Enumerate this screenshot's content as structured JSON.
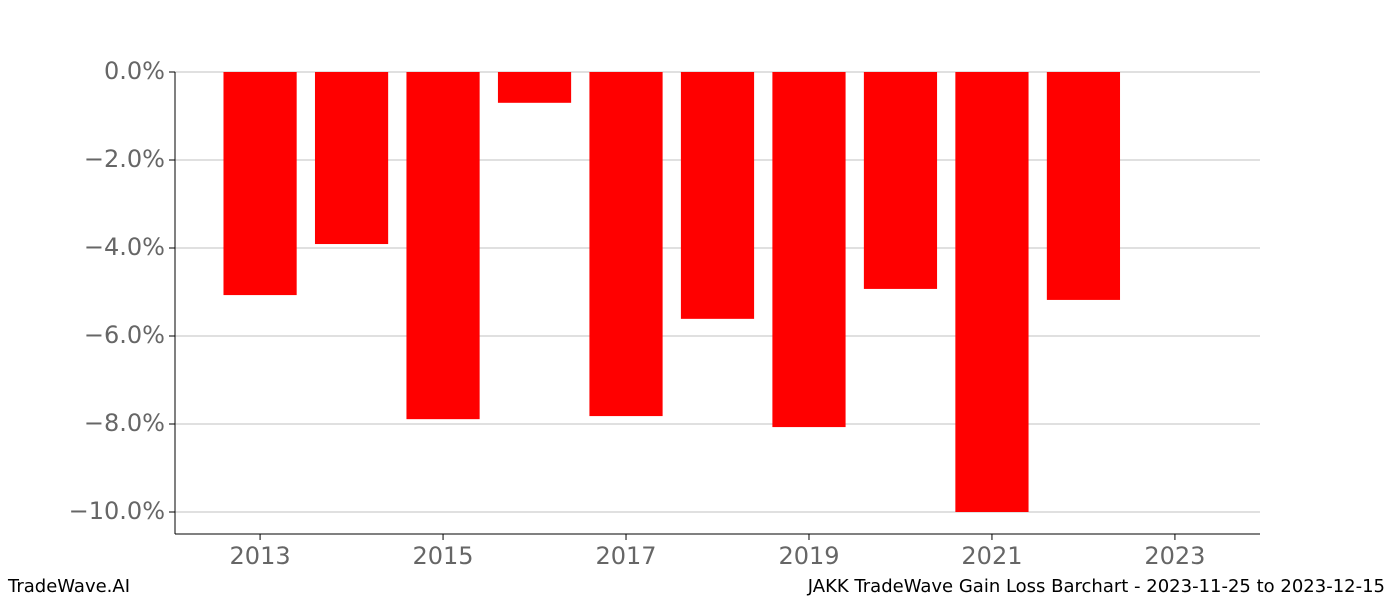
{
  "chart_data": {
    "type": "bar",
    "title": "JAKK TradeWave Gain Loss Barchart - 2023-11-25 to 2023-12-15",
    "source": "TradeWave.AI",
    "x": [
      2013,
      2014,
      2015,
      2016,
      2017,
      2018,
      2019,
      2020,
      2021,
      2022
    ],
    "values": [
      -5.07,
      -3.91,
      -7.89,
      -0.7,
      -7.82,
      -5.61,
      -8.07,
      -4.93,
      -10.0,
      -5.18
    ],
    "color": "#ff0000",
    "bar_width": 0.8,
    "xlim": [
      2012.07,
      2023.93
    ],
    "xticks": [
      2013,
      2015,
      2017,
      2019,
      2021,
      2023
    ],
    "ylim": [
      -10.5,
      0
    ],
    "yticks": [
      {
        "value": 0,
        "label": "0.0%"
      },
      {
        "value": -2,
        "label": "−2.0%"
      },
      {
        "value": -4,
        "label": "−4.0%"
      },
      {
        "value": -6,
        "label": "−6.0%"
      },
      {
        "value": -8,
        "label": "−8.0%"
      },
      {
        "value": -10,
        "label": "−10.0%"
      }
    ],
    "grid": true
  }
}
